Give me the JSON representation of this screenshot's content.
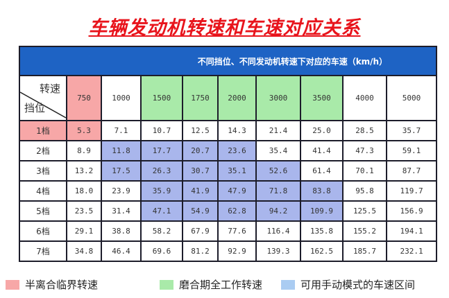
{
  "title": "车辆发动机转速和车速对应关系",
  "caption": "不同挡位、不同发动机转速下对应的车速（km/h）",
  "corner": {
    "top": "转速",
    "bottom": "挡位"
  },
  "rpm": [
    "750",
    "1000",
    "1500",
    "1750",
    "2000",
    "3000",
    "3500",
    "4000",
    "5000"
  ],
  "rows": [
    {
      "gear": "1档",
      "values": [
        "5.3",
        "7.1",
        "10.7",
        "12.5",
        "14.3",
        "21.4",
        "25.0",
        "28.5",
        "35.7"
      ]
    },
    {
      "gear": "2档",
      "values": [
        "8.9",
        "11.8",
        "17.7",
        "20.7",
        "23.6",
        "35.4",
        "41.4",
        "47.3",
        "59.1"
      ]
    },
    {
      "gear": "3档",
      "values": [
        "13.2",
        "17.5",
        "26.3",
        "30.7",
        "35.1",
        "52.6",
        "61.4",
        "70.1",
        "87.7"
      ]
    },
    {
      "gear": "4档",
      "values": [
        "18.0",
        "23.9",
        "35.9",
        "41.9",
        "47.9",
        "71.8",
        "83.8",
        "95.8",
        "119.7"
      ]
    },
    {
      "gear": "5档",
      "values": [
        "23.5",
        "31.4",
        "47.1",
        "54.9",
        "62.8",
        "94.2",
        "109.9",
        "125.5",
        "156.9"
      ]
    },
    {
      "gear": "6档",
      "values": [
        "29.1",
        "38.8",
        "58.2",
        "67.9",
        "77.6",
        "116.4",
        "135.8",
        "155.2",
        "194.1"
      ]
    },
    {
      "gear": "7档",
      "values": [
        "34.8",
        "46.4",
        "69.6",
        "81.2",
        "92.9",
        "139.3",
        "162.5",
        "185.7",
        "232.1"
      ]
    }
  ],
  "legend": [
    {
      "label": "半离合临界转速",
      "color": "#f7a7a7"
    },
    {
      "label": "磨合期全工作转速",
      "color": "#a9eaa9"
    },
    {
      "label": "可用手动模式的车速区间",
      "color": "#aaccf2"
    }
  ],
  "colors": {
    "title": "#e8141c",
    "header_bar": "#1e63c4",
    "clutch": "#f7a7a7",
    "break_in": "#a9eaa9",
    "manual": "#a9b6ec"
  }
}
